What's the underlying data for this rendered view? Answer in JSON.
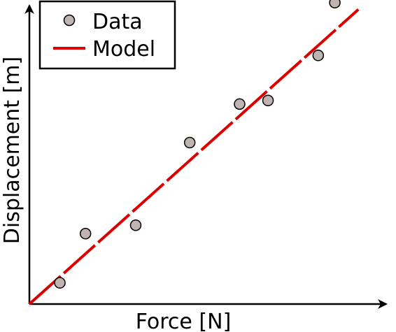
{
  "chart_data": {
    "type": "scatter",
    "title": "",
    "xlabel": "Force [N]",
    "ylabel": "Displacement [m]",
    "xlim": [
      0,
      10
    ],
    "ylim": [
      0,
      10
    ],
    "grid": false,
    "ticks_shown": false,
    "legend_placement": "top-left",
    "series": [
      {
        "name": "Data",
        "kind": "points",
        "marker": "circle",
        "color": "#bfb4b2",
        "edge_color": "#000000",
        "x": [
          0.88,
          1.62,
          3.07,
          4.63,
          6.07,
          6.89,
          8.34,
          8.82
        ],
        "y": [
          0.71,
          2.36,
          2.64,
          5.41,
          6.7,
          6.82,
          8.33,
          10.1
        ]
      },
      {
        "name": "Model",
        "kind": "line",
        "color": "#dd0000",
        "x": [
          0,
          9.5
        ],
        "y": [
          0,
          9.87
        ]
      }
    ]
  }
}
